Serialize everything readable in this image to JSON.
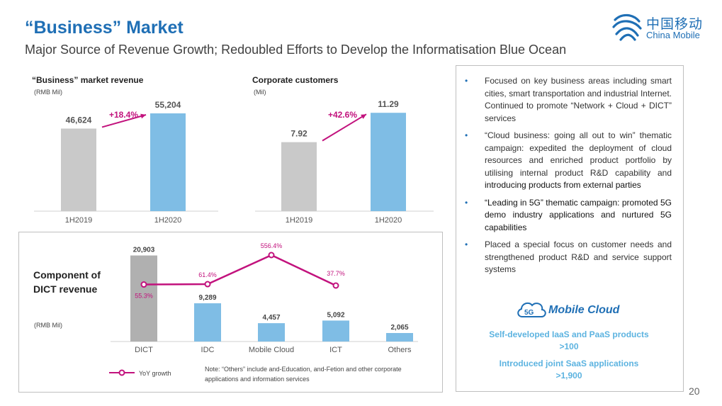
{
  "slide": {
    "title": "“Business” Market",
    "subtitle": "Major Source of Revenue Growth; Redoubled Efforts to Develop the Informatisation Blue Ocean",
    "page_number": "20"
  },
  "logo": {
    "chinese": "中国移动",
    "english": "China Mobile",
    "color": "#1f6fb5"
  },
  "colors": {
    "accent": "#1f6fb5",
    "bar_blue": "#7fbde5",
    "bar_gray": "#c9c9c9",
    "bar_dark_gray": "#b0b0b0",
    "growth": "#c2127d"
  },
  "chart_data": [
    {
      "type": "bar",
      "title": "“Business” market revenue",
      "unit": "(RMB Mil)",
      "categories": [
        "1H2019",
        "1H2020"
      ],
      "values": [
        46624,
        55204
      ],
      "value_labels": [
        "46,624",
        "55,204"
      ],
      "growth_label": "+18.4%",
      "ylim": [
        0,
        60000
      ]
    },
    {
      "type": "bar",
      "title": "Corporate customers",
      "unit": "(Mil)",
      "categories": [
        "1H2019",
        "1H2020"
      ],
      "values": [
        7.92,
        11.29
      ],
      "value_labels": [
        "7.92",
        "11.29"
      ],
      "growth_label": "+42.6%",
      "ylim": [
        0,
        12.2
      ]
    },
    {
      "type": "bar",
      "title": "Component of DICT revenue",
      "unit": "(RMB Mil)",
      "categories": [
        "DICT",
        "IDC",
        "Mobile Cloud",
        "ICT",
        "Others"
      ],
      "values": [
        20903,
        9289,
        4457,
        5092,
        2065
      ],
      "value_labels": [
        "20,903",
        "9,289",
        "4,457",
        "5,092",
        "2,065"
      ],
      "growth_series": {
        "name": "YoY growth",
        "categories": [
          "DICT",
          "IDC",
          "Mobile Cloud",
          "ICT"
        ],
        "values": [
          55.3,
          61.4,
          556.4,
          37.7
        ],
        "labels": [
          "55.3%",
          "61.4%",
          "556.4%",
          "37.7%"
        ]
      },
      "note": "Note: “Others” include and-Education, and-Fetion and other corporate applications and information services"
    }
  ],
  "bullets": [
    {
      "text": "Focused on key business areas including smart cities, smart transportation and industrial Internet. Continued to promote “Network + Cloud + DICT” services",
      "emphasis": ""
    },
    {
      "text": "“Cloud business: going all out to win” thematic campaign: expedited the deployment of cloud resources and enriched product portfolio by utilising internal product R&D capability and",
      "emphasis": "introducing products from external parties"
    },
    {
      "text": "",
      "emphasis": "“Leading in 5G” thematic campaign: promoted 5G demo industry applications and nurtured 5G capabilities"
    },
    {
      "text": "Placed a special focus on customer needs and strengthened product R&D and service support systems",
      "emphasis": ""
    }
  ],
  "mobile_cloud": {
    "badge": "5G",
    "label": "Mobile Cloud",
    "stat1_label": "Self-developed IaaS and PaaS products",
    "stat1_value": ">100",
    "stat2_label": "Introduced joint SaaS applications",
    "stat2_value": ">1,900"
  }
}
